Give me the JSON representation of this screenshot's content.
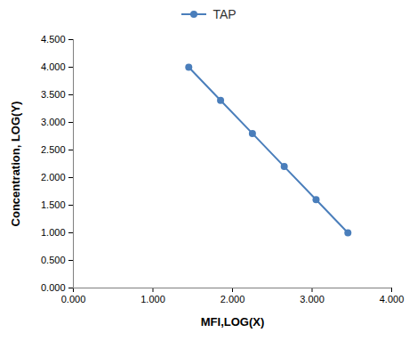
{
  "chart_data": {
    "type": "line",
    "x_label": "MFI,LOG(X)",
    "y_label": "Concentration, LOG(Y)",
    "series": [
      {
        "name": "TAP",
        "color": "#4a7ebb",
        "marker": "circle",
        "x": [
          1.45,
          1.85,
          2.25,
          2.65,
          3.05,
          3.45
        ],
        "values": [
          4.0,
          3.4,
          2.8,
          2.2,
          1.6,
          1.0
        ]
      }
    ],
    "xlim": [
      0,
      4
    ],
    "xticks": [
      {
        "value": 0,
        "label": "0.000"
      },
      {
        "value": 1,
        "label": "1.000"
      },
      {
        "value": 2,
        "label": "2.000"
      },
      {
        "value": 3,
        "label": "3.000"
      },
      {
        "value": 4,
        "label": "4.000"
      }
    ],
    "ylim": [
      0,
      4.5
    ],
    "yticks": [
      {
        "value": 0,
        "label": "0.000"
      },
      {
        "value": 0.5,
        "label": "0.500"
      },
      {
        "value": 1,
        "label": "1.000"
      },
      {
        "value": 1.5,
        "label": "1.500"
      },
      {
        "value": 2,
        "label": "2.000"
      },
      {
        "value": 2.5,
        "label": "2.500"
      },
      {
        "value": 3,
        "label": "3.000"
      },
      {
        "value": 3.5,
        "label": "3.500"
      },
      {
        "value": 4,
        "label": "4.000"
      },
      {
        "value": 4.5,
        "label": "4.500"
      }
    ],
    "grid": false,
    "legend": "top"
  }
}
